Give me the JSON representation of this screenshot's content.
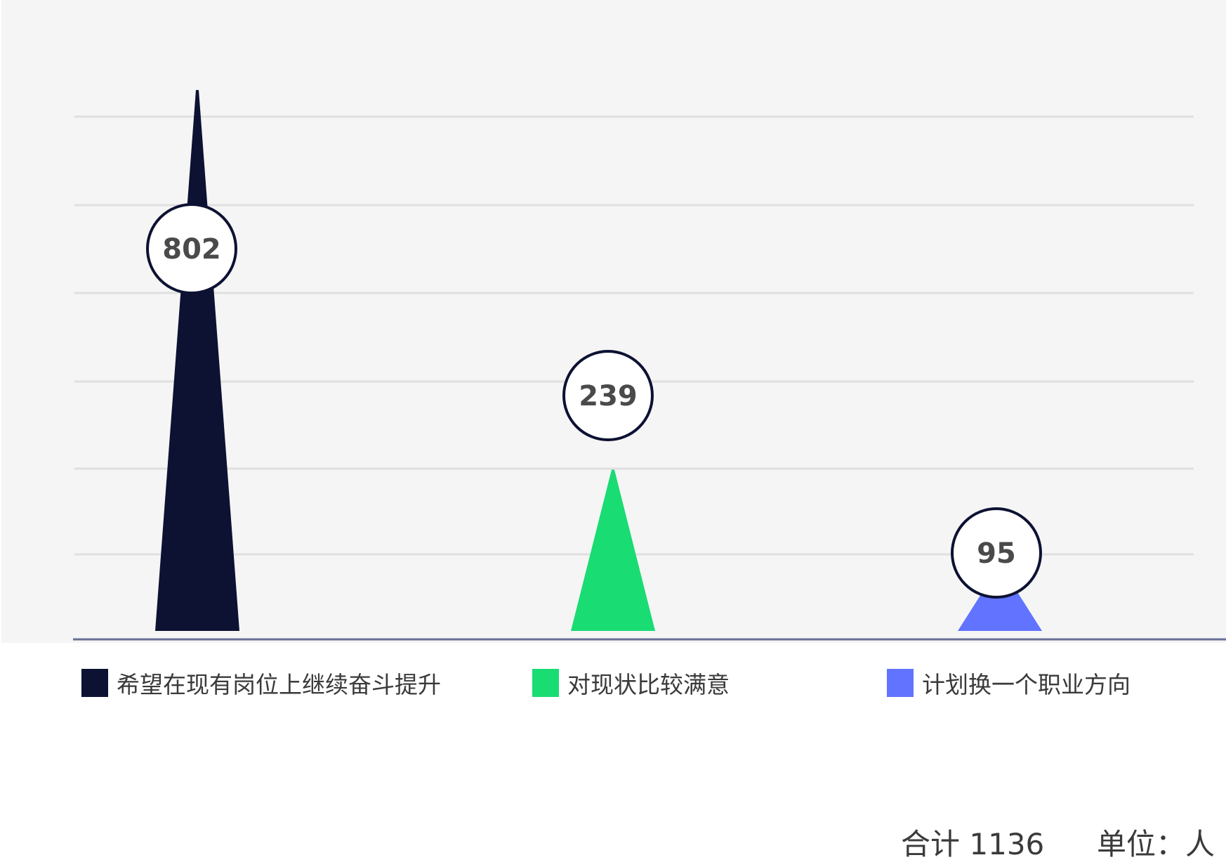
{
  "chart_data": {
    "type": "bar",
    "shape": "spike",
    "categories": [
      "希望在现有岗位上继续奋斗提升",
      "对现状比较满意",
      "计划换一个职业方向"
    ],
    "values": [
      802,
      239,
      95
    ],
    "value_labels": [
      "802",
      "239",
      "95"
    ],
    "colors": [
      "#0d1233",
      "#19dc73",
      "#6173ff"
    ],
    "ylim": [
      0,
      900
    ],
    "grid": true,
    "legend": "bottom",
    "total_label": "合计",
    "total_value": "1136",
    "unit_label": "单位：",
    "unit_value": "人"
  }
}
